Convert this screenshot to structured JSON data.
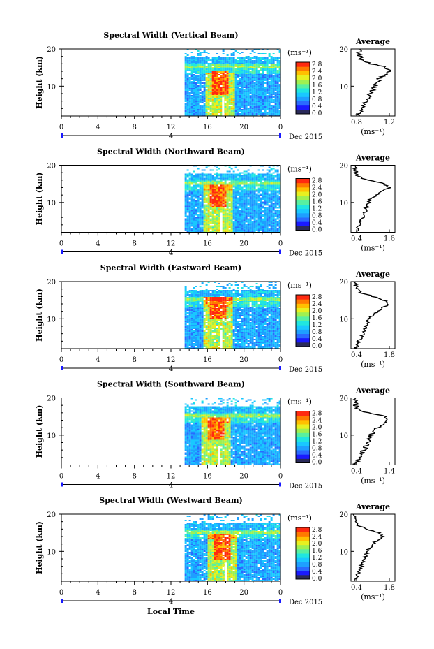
{
  "figure": {
    "x_axis_title": "Local Time",
    "date_label": "Dec 2015",
    "colorbar_unit": "(ms⁻¹)",
    "colorbar_ticks": [
      "2.8",
      "2.4",
      "2.0",
      "1.6",
      "1.2",
      "0.8",
      "0.4",
      "0.0"
    ],
    "colorscale": [
      "#2a2a5a",
      "#1a1aff",
      "#2a6aff",
      "#1e9fff",
      "#19c8ff",
      "#20e6e0",
      "#58f0a0",
      "#a0f050",
      "#e8f020",
      "#ffc000",
      "#ff7a00",
      "#ff2a10"
    ],
    "avg_title": "Average",
    "avg_xlabel": "(ms⁻¹)"
  },
  "chart_data": [
    {
      "type": "heatmap",
      "title": "Spectral Width (Vertical Beam)",
      "ylabel": "Height (km)",
      "x_ticks": [
        "0",
        "4",
        "8",
        "12",
        "16",
        "20",
        "0"
      ],
      "y_ticks": [
        "20",
        "10"
      ],
      "sub_ticks": [
        "4"
      ],
      "xlim": [
        0,
        24
      ],
      "ylim": [
        2,
        20
      ],
      "data_start_hour": 13.5,
      "tropopause_km": 15.5,
      "peak": {
        "hour": 17.2,
        "height_range": [
          8,
          14
        ]
      },
      "average_profile": {
        "xlim": [
          0.4,
          1.4
        ],
        "x_ticks": [
          "0.8",
          "1.2"
        ],
        "height": [
          2,
          4,
          6,
          8,
          10,
          11,
          12,
          13,
          14,
          15,
          16,
          17,
          18,
          20
        ],
        "value": [
          0.55,
          0.65,
          0.75,
          0.85,
          0.95,
          1.0,
          1.05,
          1.15,
          1.28,
          1.22,
          0.85,
          0.65,
          0.6,
          0.58
        ]
      }
    },
    {
      "type": "heatmap",
      "title": "Spectral Width (Northward Beam)",
      "ylabel": "Height (km)",
      "x_ticks": [
        "0",
        "4",
        "8",
        "12",
        "16",
        "20",
        "0"
      ],
      "y_ticks": [
        "20",
        "10"
      ],
      "sub_ticks": [
        "4"
      ],
      "xlim": [
        0,
        24
      ],
      "ylim": [
        2,
        20
      ],
      "data_start_hour": 13.5,
      "tropopause_km": 15.5,
      "peak": {
        "hour": 17.0,
        "height_range": [
          9,
          15
        ]
      },
      "average_profile": {
        "xlim": [
          0.4,
          1.6
        ],
        "x_ticks": [
          "0.4",
          "1.6"
        ],
        "height": [
          2,
          4,
          6,
          8,
          10,
          11,
          12,
          13,
          14,
          15,
          16,
          17,
          18,
          20
        ],
        "value": [
          0.55,
          0.62,
          0.72,
          0.8,
          0.88,
          0.95,
          1.1,
          1.25,
          1.45,
          1.3,
          0.85,
          0.6,
          0.55,
          0.5
        ]
      }
    },
    {
      "type": "heatmap",
      "title": "Spectral Width (Eastward Beam)",
      "ylabel": "Height (km)",
      "x_ticks": [
        "0",
        "4",
        "8",
        "12",
        "16",
        "20",
        "0"
      ],
      "y_ticks": [
        "20",
        "10"
      ],
      "sub_ticks": [
        "4"
      ],
      "xlim": [
        0,
        24
      ],
      "ylim": [
        2,
        20
      ],
      "data_start_hour": 13.5,
      "tropopause_km": 15.5,
      "peak": {
        "hour": 17.0,
        "height_range": [
          10,
          16
        ]
      },
      "average_profile": {
        "xlim": [
          0.4,
          1.8
        ],
        "x_ticks": [
          "0.4",
          "1.8"
        ],
        "height": [
          2,
          4,
          6,
          8,
          10,
          11,
          12,
          13,
          14,
          15,
          16,
          17,
          18,
          20
        ],
        "value": [
          0.55,
          0.65,
          0.78,
          0.88,
          0.98,
          1.1,
          1.25,
          1.4,
          1.6,
          1.45,
          1.1,
          0.7,
          0.6,
          0.55
        ]
      }
    },
    {
      "type": "heatmap",
      "title": "Spectral Width (Southward Beam)",
      "ylabel": "Height (km)",
      "x_ticks": [
        "0",
        "4",
        "8",
        "12",
        "16",
        "20",
        "0"
      ],
      "y_ticks": [
        "20",
        "10"
      ],
      "sub_ticks": [
        "4"
      ],
      "xlim": [
        0,
        24
      ],
      "ylim": [
        2,
        20
      ],
      "data_start_hour": 13.5,
      "tropopause_km": 15.5,
      "peak": {
        "hour": 16.8,
        "height_range": [
          9,
          15
        ]
      },
      "average_profile": {
        "xlim": [
          0.4,
          1.4
        ],
        "x_ticks": [
          "0.4",
          "1.4"
        ],
        "height": [
          2,
          4,
          6,
          8,
          10,
          11,
          12,
          13,
          14,
          15,
          16,
          17,
          18,
          20
        ],
        "value": [
          0.5,
          0.6,
          0.7,
          0.78,
          0.85,
          0.9,
          1.0,
          1.1,
          1.25,
          1.15,
          0.8,
          0.55,
          0.5,
          0.48
        ]
      }
    },
    {
      "type": "heatmap",
      "title": "Spectral Width (Westward Beam)",
      "ylabel": "Height (km)",
      "x_ticks": [
        "0",
        "4",
        "8",
        "12",
        "16",
        "20",
        "0"
      ],
      "y_ticks": [
        "20",
        "10"
      ],
      "sub_ticks": [
        "4"
      ],
      "xlim": [
        0,
        24
      ],
      "ylim": [
        2,
        20
      ],
      "data_start_hour": 13.5,
      "tropopause_km": 15.5,
      "peak": {
        "hour": 17.5,
        "height_range": [
          8,
          15
        ]
      },
      "average_profile": {
        "xlim": [
          0.4,
          1.8
        ],
        "x_ticks": [
          "0.4",
          "1.8"
        ],
        "height": [
          2,
          4,
          6,
          8,
          10,
          11,
          12,
          13,
          14,
          15,
          16,
          17,
          18,
          20
        ],
        "value": [
          0.55,
          0.62,
          0.72,
          0.82,
          0.92,
          1.0,
          1.1,
          1.25,
          1.4,
          1.3,
          0.9,
          0.62,
          0.55,
          0.5
        ]
      }
    }
  ]
}
